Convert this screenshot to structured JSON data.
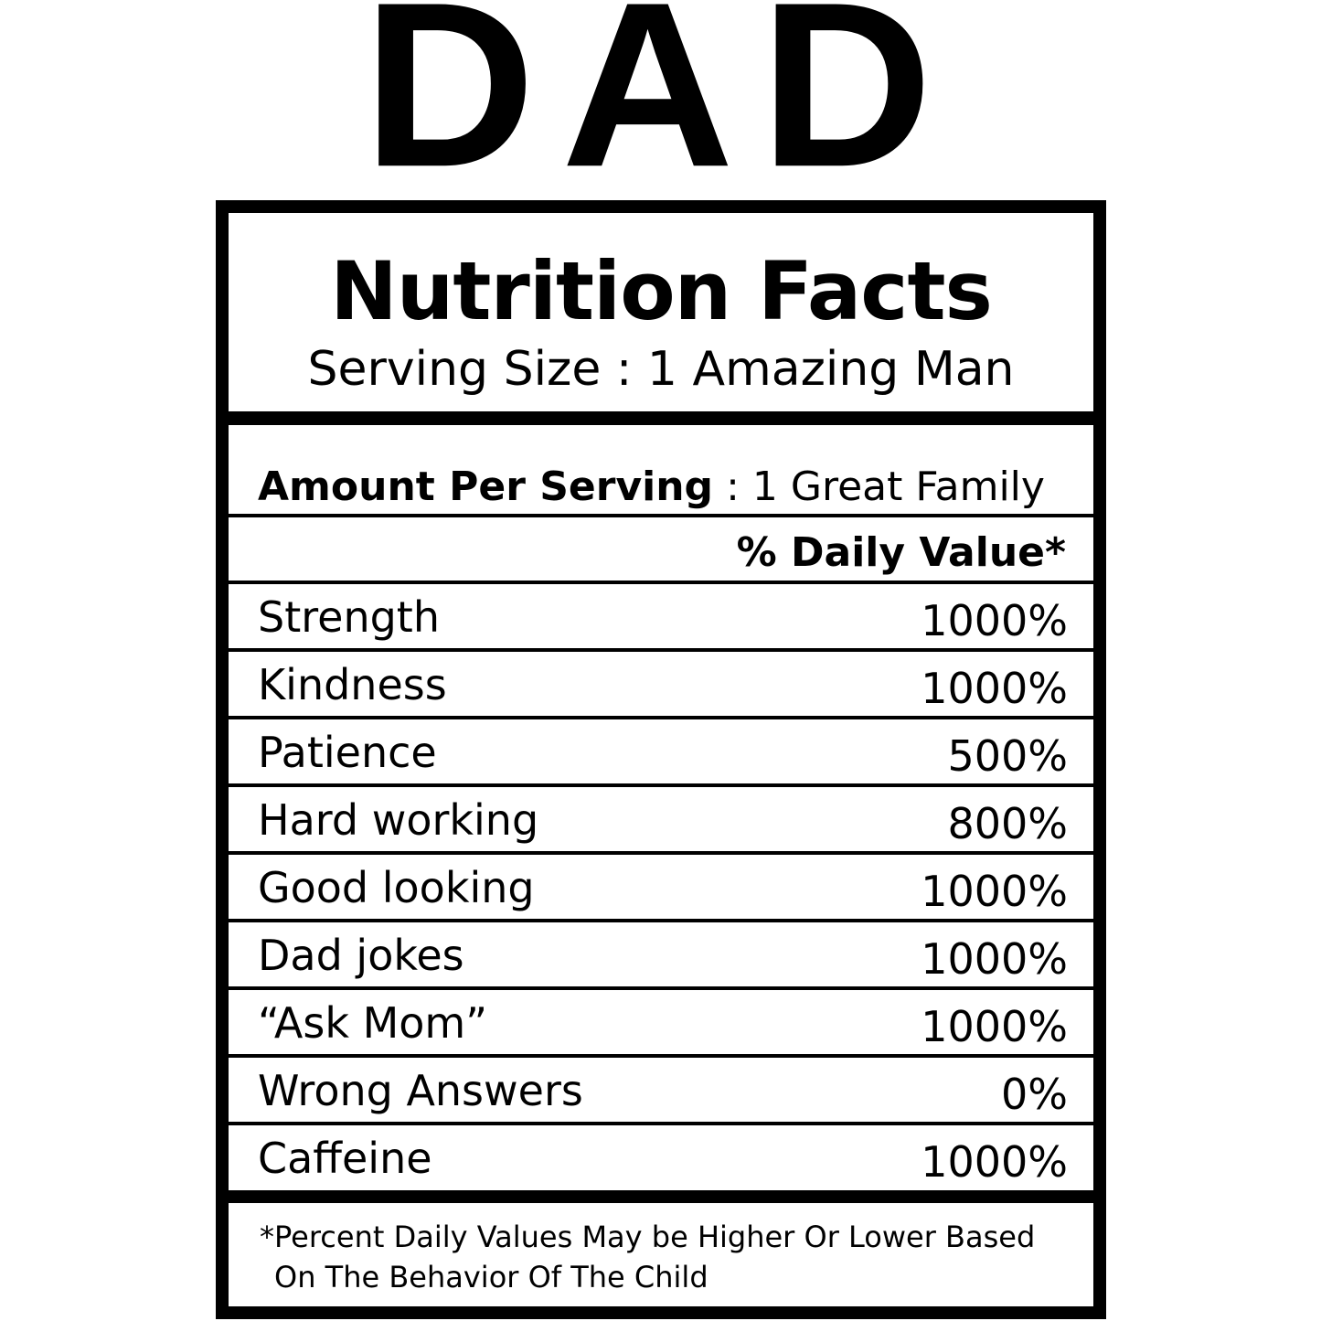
{
  "title": "DAD",
  "label": {
    "heading": "Nutrition Facts",
    "serving_size": "Serving Size : 1 Amazing Man",
    "amount_label": "Amount Per Serving",
    "amount_value": ": 1 Great Family",
    "daily_value_header": "% Daily Value*",
    "rows": [
      [
        "Strength",
        "1000%"
      ],
      [
        "Kindness",
        "1000%"
      ],
      [
        "Patience",
        "500%"
      ],
      [
        "Hard working",
        "800%"
      ],
      [
        "Good looking",
        "1000%"
      ],
      [
        "Dad jokes",
        "1000%"
      ],
      [
        "“Ask Mom”",
        "1000%"
      ],
      [
        "Wrong Answers",
        "0%"
      ],
      [
        "Caffeine",
        "1000%"
      ]
    ],
    "footnote": [
      "*Percent Daily Values May be Higher Or Lower Based",
      "On The Behavior Of The Child"
    ]
  }
}
